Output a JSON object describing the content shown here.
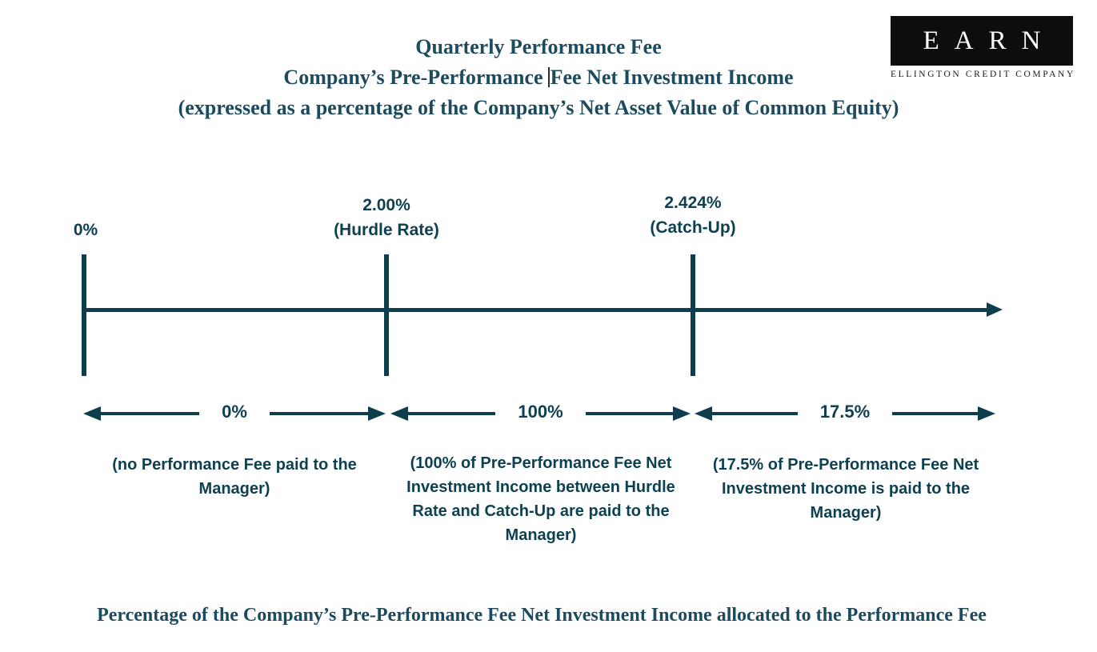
{
  "header": {
    "title_line1": "Quarterly Performance Fee",
    "title_line2_part1": "Company’s Pre-Performance",
    "title_line2_part2": "Fee Net Investment Income",
    "title_line3": "(expressed as a percentage of the Company’s Net Asset Value of Common Equity)"
  },
  "logo": {
    "ticker": "EARN",
    "company": "ELLINGTON CREDIT COMPANY"
  },
  "axis": {
    "ticks": [
      {
        "value": "0%",
        "sublabel": ""
      },
      {
        "value": "2.00%",
        "sublabel": "(Hurdle Rate)"
      },
      {
        "value": "2.424%",
        "sublabel": "(Catch-Up)"
      }
    ]
  },
  "segments": [
    {
      "label": "0%",
      "description": "(no Performance Fee paid to the Manager)"
    },
    {
      "label": "100%",
      "description": "(100% of Pre-Performance Fee Net Investment Income between Hurdle Rate and Catch-Up are paid to the Manager)"
    },
    {
      "label": "17.5%",
      "description": "(17.5% of Pre-Performance Fee Net Investment Income is paid to the Manager)"
    }
  ],
  "footer": {
    "caption": "Percentage of the Company’s Pre-Performance Fee Net Investment Income allocated to the Performance Fee"
  },
  "colors": {
    "teal_line": "#0d3e4e",
    "teal_text": "#0d4152",
    "serif_text": "#1c4a5e",
    "logo_bg": "#0d0d0d"
  }
}
